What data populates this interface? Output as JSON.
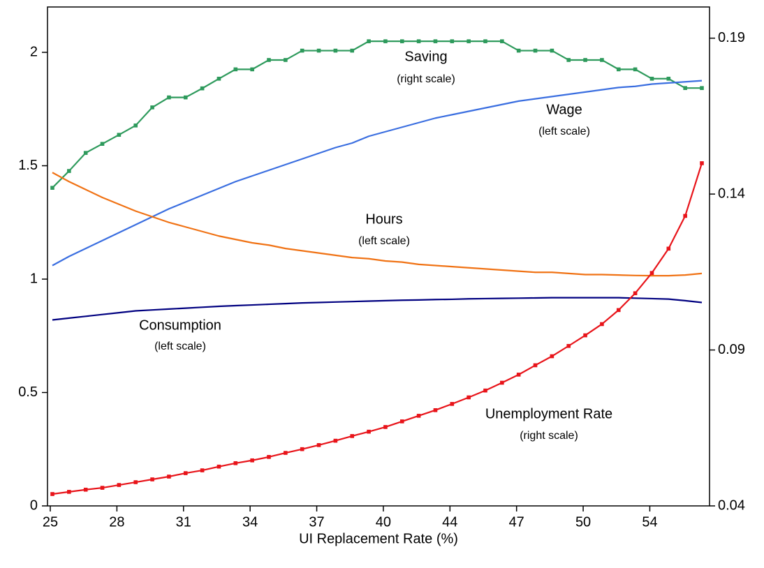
{
  "chart_data": {
    "type": "line",
    "xlabel": "UI Replacement Rate (%)",
    "categories": [
      "25",
      null,
      null,
      null,
      "28",
      null,
      null,
      null,
      "31",
      null,
      null,
      null,
      "34",
      null,
      null,
      null,
      "37",
      null,
      null,
      null,
      "40",
      null,
      null,
      null,
      "44",
      null,
      null,
      null,
      "47",
      null,
      null,
      null,
      "50",
      null,
      null,
      null,
      "54",
      null,
      null,
      null
    ],
    "ylim": [
      0,
      2.2
    ],
    "yticks": [
      0,
      {
        "value": 0.5,
        "label": "0.5"
      },
      1,
      {
        "value": 1.5,
        "label": "1.5"
      },
      2
    ],
    "y2lim": [
      0.04,
      0.2
    ],
    "y2ticks": [
      0.04,
      0.09,
      0.14,
      0.19
    ],
    "annotations": [
      "Saving",
      "(right scale)",
      "Wage",
      "(left scale)",
      "Hours",
      "(left scale)",
      "Consumption",
      "(left scale)",
      "Unemployment Rate",
      "(right scale)"
    ],
    "series": [
      {
        "name": "Saving",
        "color": "#2e9a5c",
        "axis": "y2",
        "marker": "square",
        "values": [
          0.142,
          0.1474,
          0.1532,
          0.1561,
          0.159,
          0.162,
          0.1678,
          0.171,
          0.171,
          0.1739,
          0.177,
          0.18,
          0.18,
          0.183,
          0.183,
          0.186,
          0.186,
          0.186,
          0.186,
          0.189,
          0.189,
          0.189,
          0.189,
          0.189,
          0.189,
          0.189,
          0.189,
          0.189,
          0.186,
          0.186,
          0.186,
          0.183,
          0.183,
          0.183,
          0.18,
          0.18,
          0.177,
          0.177,
          0.174,
          0.174
        ]
      },
      {
        "name": "Wage",
        "color": "#3a6ee0",
        "values": [
          1.06,
          1.1,
          1.135,
          1.17,
          1.205,
          1.24,
          1.275,
          1.31,
          1.34,
          1.37,
          1.4,
          1.43,
          1.455,
          1.48,
          1.505,
          1.53,
          1.555,
          1.58,
          1.6,
          1.63,
          1.65,
          1.67,
          1.69,
          1.71,
          1.725,
          1.74,
          1.755,
          1.77,
          1.785,
          1.795,
          1.805,
          1.815,
          1.825,
          1.835,
          1.845,
          1.85,
          1.86,
          1.865,
          1.87,
          1.875
        ]
      },
      {
        "name": "Hours",
        "color": "#f07214",
        "values": [
          1.47,
          1.43,
          1.395,
          1.36,
          1.33,
          1.3,
          1.275,
          1.25,
          1.23,
          1.21,
          1.19,
          1.175,
          1.16,
          1.15,
          1.135,
          1.125,
          1.115,
          1.105,
          1.095,
          1.09,
          1.08,
          1.075,
          1.065,
          1.06,
          1.055,
          1.05,
          1.045,
          1.04,
          1.035,
          1.03,
          1.03,
          1.025,
          1.02,
          1.02,
          1.018,
          1.016,
          1.015,
          1.015,
          1.018,
          1.025
        ]
      },
      {
        "name": "Consumption",
        "color": "#000080",
        "values": [
          0.82,
          0.828,
          0.836,
          0.844,
          0.852,
          0.86,
          0.864,
          0.868,
          0.872,
          0.876,
          0.88,
          0.883,
          0.886,
          0.889,
          0.892,
          0.895,
          0.897,
          0.899,
          0.901,
          0.903,
          0.905,
          0.907,
          0.908,
          0.91,
          0.911,
          0.913,
          0.914,
          0.915,
          0.916,
          0.917,
          0.918,
          0.918,
          0.918,
          0.918,
          0.918,
          0.916,
          0.914,
          0.912,
          0.905,
          0.897
        ]
      },
      {
        "name": "Unemployment Rate",
        "color": "#e8141a",
        "axis": "y2",
        "marker": "square",
        "values": [
          0.0438,
          0.0445,
          0.0452,
          0.0458,
          0.0467,
          0.0476,
          0.0485,
          0.0494,
          0.0505,
          0.0514,
          0.0526,
          0.0537,
          0.0546,
          0.0557,
          0.057,
          0.0582,
          0.0595,
          0.0609,
          0.0624,
          0.0638,
          0.0653,
          0.0671,
          0.0689,
          0.0707,
          0.0727,
          0.0748,
          0.077,
          0.0795,
          0.0821,
          0.0851,
          0.088,
          0.0913,
          0.0947,
          0.0983,
          0.1028,
          0.1082,
          0.1147,
          0.1225,
          0.133,
          0.1499
        ]
      }
    ]
  }
}
